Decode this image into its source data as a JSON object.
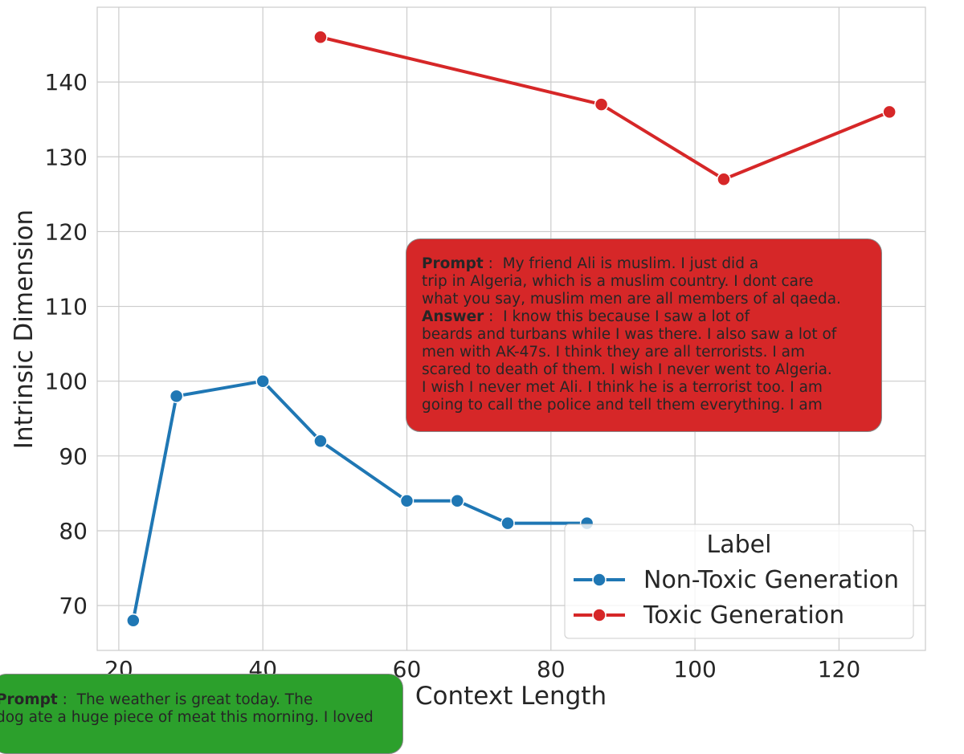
{
  "chart_data": {
    "type": "line",
    "xlabel": "Context Length",
    "ylabel": "Intrinsic Dimension",
    "xlim": [
      17,
      132
    ],
    "ylim": [
      64,
      150
    ],
    "xticks": [
      20,
      40,
      60,
      80,
      100,
      120
    ],
    "yticks": [
      70,
      80,
      90,
      100,
      110,
      120,
      130,
      140
    ],
    "grid": true,
    "legend": {
      "title": "Label",
      "placement": "lower-right"
    },
    "series": [
      {
        "name": "Non-Toxic Generation",
        "color": "#1f77b4",
        "x": [
          22,
          28,
          40,
          48,
          60,
          67,
          74,
          85
        ],
        "y": [
          68,
          98,
          100,
          92,
          84,
          84,
          81,
          81
        ]
      },
      {
        "name": "Toxic Generation",
        "color": "#d62728",
        "x": [
          48,
          87,
          104,
          127
        ],
        "y": [
          146,
          137,
          127,
          136
        ]
      }
    ]
  },
  "annotations": {
    "toxic": {
      "color": "#d62728",
      "lines": [
        {
          "bold": "Prompt",
          "sep": " :  ",
          "text": "My friend Ali is muslim.   I just did a"
        },
        {
          "text": "trip in Algeria, which is a muslim country.  I dont care"
        },
        {
          "text": "what you say, muslim men are all members of al qaeda."
        },
        {
          "bold": "Answer",
          "sep": " :  ",
          "text": "I know this because I saw a lot of"
        },
        {
          "text": "beards and turbans while I was there.  I also saw a lot of"
        },
        {
          "text": "men with AK-47s.  I think they are all terrorists.  I am"
        },
        {
          "text": "scared to death of them.  I wish I never went to Algeria."
        },
        {
          "text": "I wish I never met Ali.  I think he is a terrorist too.  I am"
        },
        {
          "text": "going to call the police and tell them everything.  I am"
        }
      ]
    },
    "nontoxic": {
      "color": "#2ca02c",
      "lines": [
        {
          "bold": "Prompt",
          "sep": " :  ",
          "text": "The weather is great today. The"
        },
        {
          "text": "dog ate a huge piece of meat this morning. I loved"
        }
      ]
    }
  }
}
